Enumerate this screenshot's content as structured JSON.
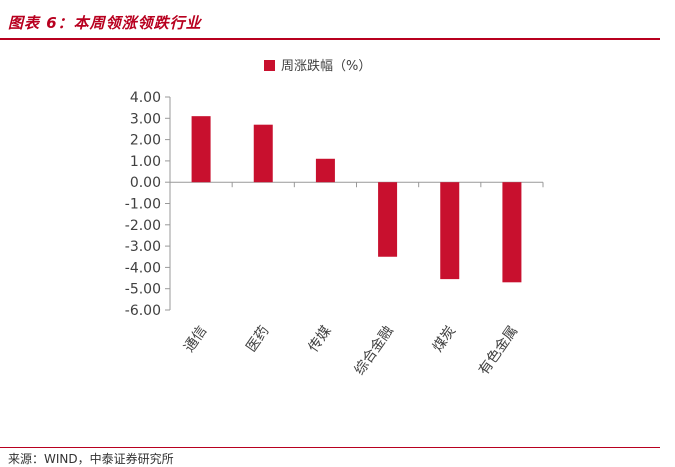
{
  "header": {
    "title": "图表 6：本周领涨领跌行业"
  },
  "footer": {
    "source": "来源：WIND，中泰证券研究所"
  },
  "colors": {
    "accent": "#b8001f",
    "bar": "#c8102e",
    "axis": "#999999",
    "text": "#404040"
  },
  "chart_data": {
    "type": "bar",
    "categories": [
      "通信",
      "医药",
      "传媒",
      "综合金融",
      "煤炭",
      "有色金属"
    ],
    "series": [
      {
        "name": "周涨跌幅（%）",
        "values": [
          3.1,
          2.7,
          1.1,
          -3.5,
          -4.55,
          -4.7
        ]
      }
    ],
    "ylim": [
      -6,
      4
    ],
    "yticks": [
      "4.00",
      "3.00",
      "2.00",
      "1.00",
      "0.00",
      "-1.00",
      "-2.00",
      "-3.00",
      "-4.00",
      "-5.00",
      "-6.00"
    ],
    "legend_position": "top",
    "grid": false
  }
}
